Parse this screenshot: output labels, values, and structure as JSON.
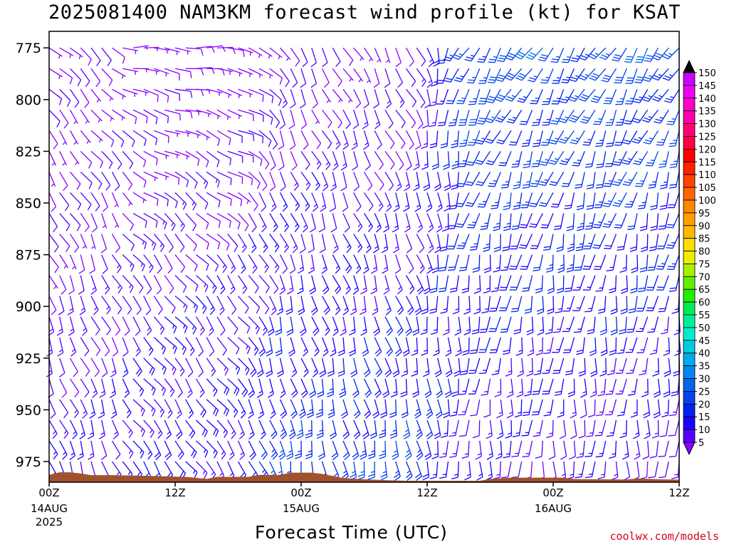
{
  "page": {
    "title": "2025081400 NAM3KM forecast wind profile (kt) for KSAT",
    "credit": "coolwx.com/models"
  },
  "chart_data": {
    "type": "wind-barb time-height",
    "title": "2025081400 NAM3KM forecast wind profile (kt) for KSAT",
    "xlabel": "Forecast Time (UTC)",
    "ylabel": "",
    "units": "kt",
    "x_range_hours": [
      0,
      60
    ],
    "y_range_hPa": [
      985,
      767
    ],
    "y_axis": "pressure (inverted)",
    "x_ticks": [
      {
        "hour": 0,
        "label": "00Z",
        "sub1": "14AUG",
        "sub2": "2025"
      },
      {
        "hour": 12,
        "label": "12Z",
        "sub1": "",
        "sub2": ""
      },
      {
        "hour": 24,
        "label": "00Z",
        "sub1": "15AUG",
        "sub2": ""
      },
      {
        "hour": 36,
        "label": "12Z",
        "sub1": "",
        "sub2": ""
      },
      {
        "hour": 48,
        "label": "00Z",
        "sub1": "16AUG",
        "sub2": ""
      },
      {
        "hour": 60,
        "label": "12Z",
        "sub1": "",
        "sub2": ""
      }
    ],
    "y_ticks": [
      775,
      800,
      825,
      850,
      875,
      900,
      925,
      950,
      975
    ],
    "color_scale": {
      "levels": [
        5,
        10,
        15,
        20,
        25,
        30,
        35,
        40,
        45,
        50,
        55,
        60,
        65,
        70,
        75,
        80,
        85,
        90,
        95,
        100,
        105,
        110,
        115,
        120,
        125,
        130,
        135,
        140,
        145,
        150
      ],
      "colors": [
        "#8800ff",
        "#5500ff",
        "#1a00ff",
        "#0022ee",
        "#0044ee",
        "#0066ee",
        "#0088ee",
        "#00aaee",
        "#00ccdd",
        "#00eecc",
        "#00ee99",
        "#00ee55",
        "#22ee00",
        "#66ee00",
        "#aaee00",
        "#eeee00",
        "#ffdd00",
        "#ffbb00",
        "#ffa000",
        "#ff8800",
        "#ff6600",
        "#ff4400",
        "#ff2200",
        "#ff0000",
        "#ff0044",
        "#ff0077",
        "#ff00aa",
        "#ff00cc",
        "#ee00ee",
        "#cc00ff"
      ],
      "over_color": "#000000",
      "under_color": "#8800ff"
    },
    "terrain": {
      "color": "#a0522d",
      "surface_hPa": [
        [
          0,
          981.5
        ],
        [
          1,
          980.2
        ],
        [
          2,
          980.2
        ],
        [
          3,
          980.8
        ],
        [
          4,
          981.6
        ],
        [
          6,
          981.6
        ],
        [
          9,
          981.9
        ],
        [
          13,
          982.4
        ],
        [
          15,
          983.4
        ],
        [
          16,
          982.4
        ],
        [
          19,
          982.4
        ],
        [
          20,
          981.5
        ],
        [
          22,
          981.5
        ],
        [
          23,
          980.4
        ],
        [
          25,
          980.4
        ],
        [
          26,
          981.0
        ],
        [
          27,
          982.0
        ],
        [
          28,
          983.0
        ],
        [
          30,
          983.6
        ],
        [
          32,
          984.0
        ],
        [
          34,
          984.3
        ],
        [
          41,
          984.3
        ],
        [
          42,
          983.4
        ],
        [
          44,
          982.8
        ],
        [
          49,
          982.8
        ],
        [
          50,
          983.5
        ],
        [
          55,
          983.7
        ],
        [
          56,
          983.2
        ],
        [
          58,
          983.6
        ],
        [
          60,
          983.8
        ]
      ]
    },
    "barbs": {
      "time_step_hours": 1,
      "levels_hPa": [
        775,
        785,
        795,
        805,
        815,
        825,
        835,
        845,
        855,
        865,
        875,
        885,
        895,
        905,
        915,
        925,
        935,
        945,
        955,
        965,
        975
      ],
      "note": "wind direction in degrees (from), speed in kt",
      "phases": [
        {
          "hours": [
            0,
            8
          ],
          "low_dir": 160,
          "low_spd": 15,
          "mid_dir": 155,
          "mid_spd": 10,
          "upper_dir": 130,
          "upper_spd": 7
        },
        {
          "hours": [
            8,
            22
          ],
          "low_dir": 145,
          "low_spd": 18,
          "mid_dir": 140,
          "mid_spd": 12,
          "upper_dir": 90,
          "upper_spd": 6
        },
        {
          "hours": [
            22,
            40
          ],
          "low_dir": 170,
          "low_spd": 25,
          "mid_dir": 160,
          "mid_spd": 15,
          "upper_dir": 150,
          "upper_spd": 8
        },
        {
          "hours": [
            40,
            60
          ],
          "low_dir": 180,
          "low_spd": 12,
          "mid_dir": 190,
          "mid_spd": 20,
          "upper_dir": 215,
          "upper_spd": 28
        }
      ]
    }
  }
}
